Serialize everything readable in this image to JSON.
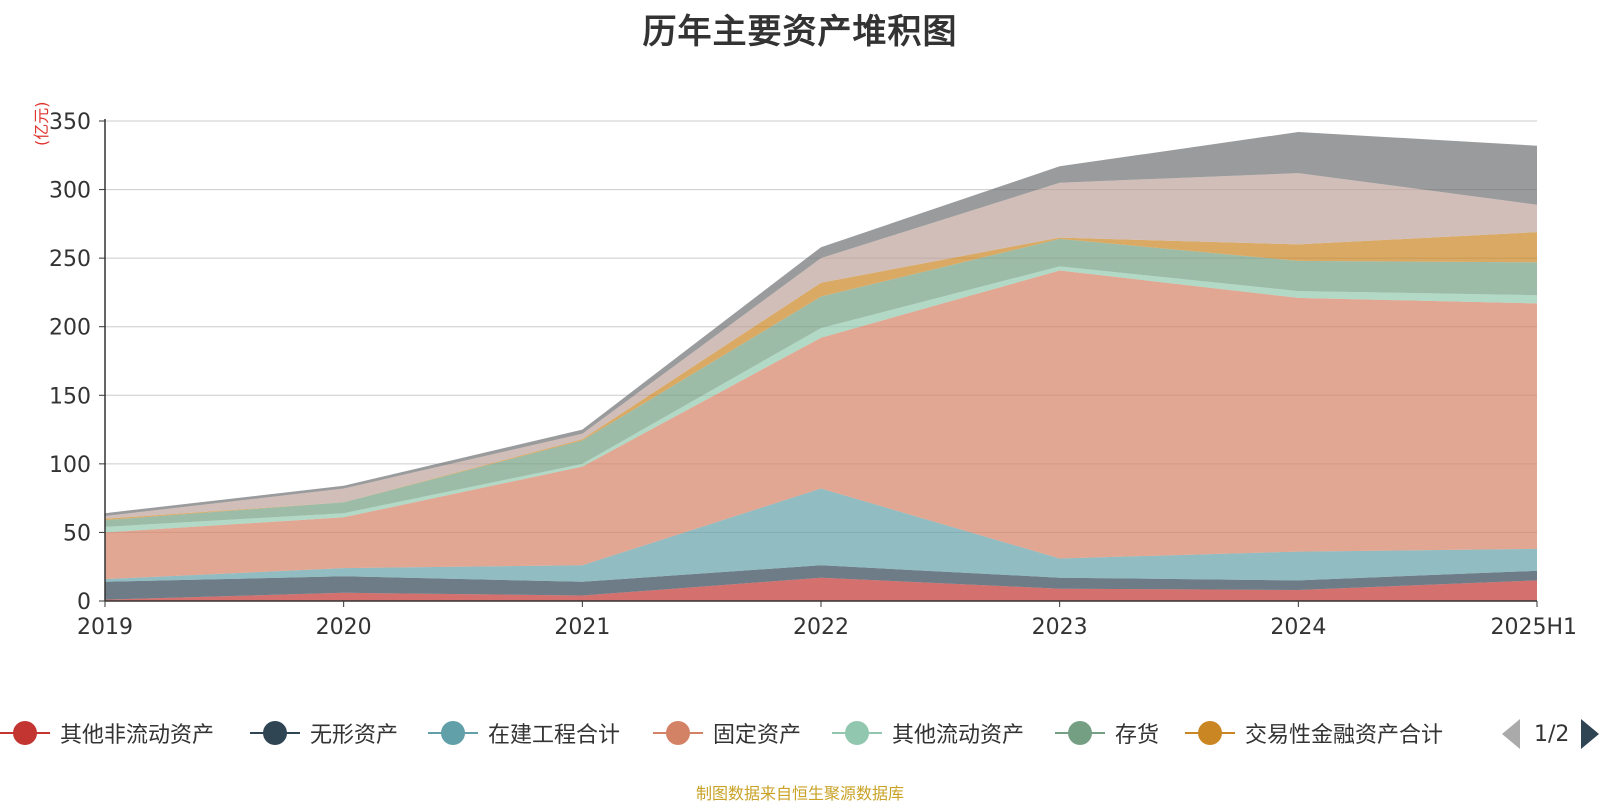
{
  "title": "历年主要资产堆积图",
  "unit_label": "(亿元)",
  "source_text": "制图数据来自恒生聚源数据库",
  "pager": {
    "text": "1/2"
  },
  "legend_items": [
    {
      "name": "其他非流动资产",
      "color": "#c23531"
    },
    {
      "name": "无形资产",
      "color": "#2f4554"
    },
    {
      "name": "在建工程合计",
      "color": "#61a0a8"
    },
    {
      "name": "固定资产",
      "color": "#d48265"
    },
    {
      "name": "其他流动资产",
      "color": "#91c7ae"
    },
    {
      "name": "存货",
      "color": "#749f83"
    },
    {
      "name": "交易性金融资产合计",
      "color": "#ca8622"
    }
  ],
  "chart_data": {
    "type": "area",
    "stacked": true,
    "title": "历年主要资产堆积图",
    "ylabel": "(亿元)",
    "categories": [
      "2019",
      "2020",
      "2021",
      "2022",
      "2023",
      "2024",
      "2025H1"
    ],
    "ylim": [
      0,
      350
    ],
    "yticks": [
      0,
      50,
      100,
      150,
      200,
      250,
      300,
      350
    ],
    "grid": true,
    "legend_position": "bottom",
    "series": [
      {
        "name": "其他非流动资产",
        "color": "#c23531",
        "values": [
          1,
          6,
          4,
          17,
          9,
          8,
          15
        ]
      },
      {
        "name": "无形资产",
        "color": "#2f4554",
        "values": [
          13,
          12,
          10,
          9,
          8,
          7,
          7
        ]
      },
      {
        "name": "在建工程合计",
        "color": "#61a0a8",
        "values": [
          2,
          6,
          12,
          56,
          14,
          21,
          16
        ]
      },
      {
        "name": "固定资产",
        "color": "#d48265",
        "values": [
          34,
          37,
          72,
          110,
          210,
          185,
          179
        ]
      },
      {
        "name": "其他流动资产",
        "color": "#91c7ae",
        "values": [
          4,
          3,
          2,
          7,
          3,
          5,
          6
        ]
      },
      {
        "name": "存货",
        "color": "#749f83",
        "values": [
          5,
          8,
          17,
          23,
          20,
          22,
          24
        ]
      },
      {
        "name": "交易性金融资产合计",
        "color": "#ca8622",
        "values": [
          1,
          0,
          1,
          10,
          1,
          12,
          22
        ]
      },
      {
        "name": "",
        "color": "#bda29a",
        "values": [
          2,
          10,
          4,
          18,
          40,
          52,
          20
        ]
      },
      {
        "name": "",
        "color": "#6e7074",
        "values": [
          2,
          2,
          3,
          8,
          12,
          30,
          43
        ]
      }
    ]
  }
}
